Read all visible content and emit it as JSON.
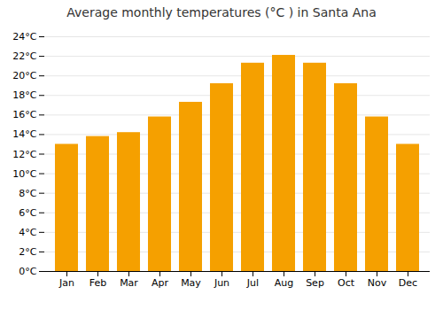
{
  "chart_data": {
    "type": "bar",
    "title": "Average monthly temperatures (°C ) in Santa Ana",
    "categories": [
      "Jan",
      "Feb",
      "Mar",
      "Apr",
      "May",
      "Jun",
      "Jul",
      "Aug",
      "Sep",
      "Oct",
      "Nov",
      "Dec"
    ],
    "values": [
      13.0,
      13.8,
      14.2,
      15.8,
      17.3,
      19.2,
      21.3,
      22.1,
      21.3,
      19.2,
      15.8,
      13.0
    ],
    "color": "#F5A000",
    "ylim": [
      0,
      24
    ],
    "yticks": [
      {
        "value": 0,
        "label": "0°C"
      },
      {
        "value": 2,
        "label": "2°C"
      },
      {
        "value": 4,
        "label": "4°C"
      },
      {
        "value": 6,
        "label": "6°C"
      },
      {
        "value": 8,
        "label": "8°C"
      },
      {
        "value": 10,
        "label": "10°C"
      },
      {
        "value": 12,
        "label": "12°C"
      },
      {
        "value": 14,
        "label": "14°C"
      },
      {
        "value": 16,
        "label": "16°C"
      },
      {
        "value": 18,
        "label": "18°C"
      },
      {
        "value": 20,
        "label": "20°C"
      },
      {
        "value": 22,
        "label": "22°C"
      },
      {
        "value": 24,
        "label": "24°C"
      }
    ],
    "grid": true
  }
}
